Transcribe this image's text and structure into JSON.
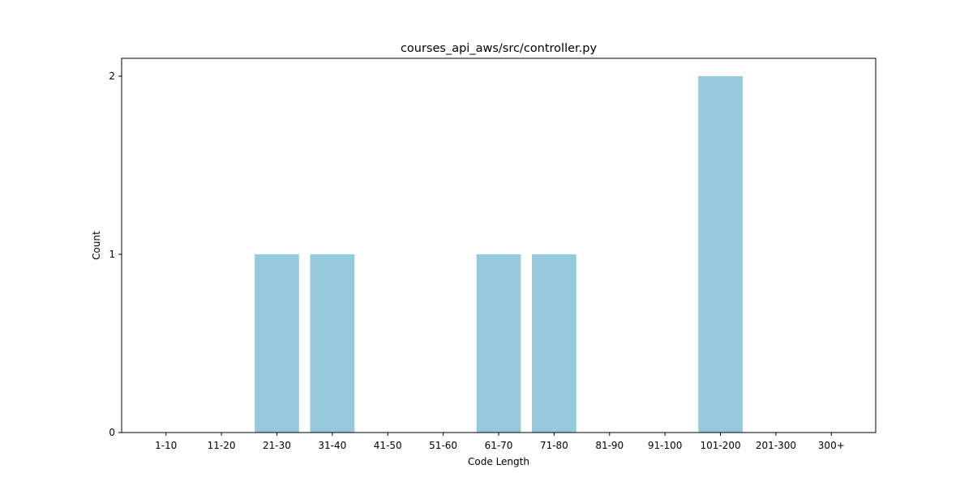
{
  "chart_data": {
    "type": "bar",
    "title": "courses_api_aws/src/controller.py",
    "xlabel": "Code Length",
    "ylabel": "Count",
    "categories": [
      "1-10",
      "11-20",
      "21-30",
      "31-40",
      "41-50",
      "51-60",
      "61-70",
      "71-80",
      "81-90",
      "91-100",
      "101-200",
      "201-300",
      "300+"
    ],
    "values": [
      0,
      0,
      1,
      1,
      0,
      0,
      1,
      1,
      0,
      0,
      2,
      0,
      0
    ],
    "ylim": [
      0,
      2.1
    ],
    "yticks": [
      0,
      1,
      2
    ],
    "bar_color": "#96c9dc",
    "grid": false,
    "legend": "none"
  }
}
